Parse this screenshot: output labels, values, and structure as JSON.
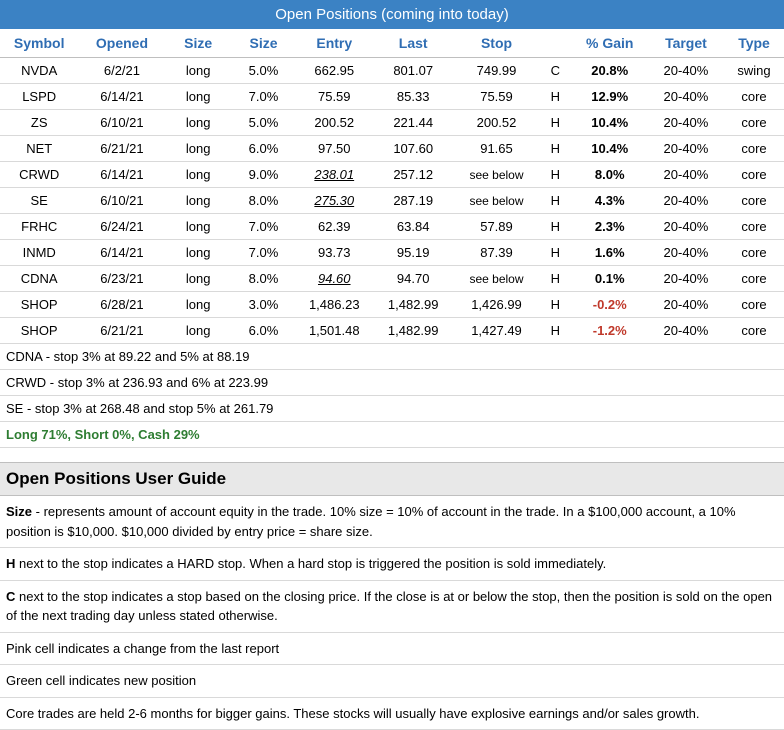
{
  "title": "Open Positions (coming into today)",
  "columns": [
    "Symbol",
    "Opened",
    "Size",
    "Size",
    "Entry",
    "Last",
    "Stop",
    "",
    "% Gain",
    "Target",
    "Type"
  ],
  "rows": [
    {
      "symbol": "NVDA",
      "opened": "6/2/21",
      "side": "long",
      "size": "5.0%",
      "entry": "662.95",
      "entry_u": false,
      "last": "801.07",
      "stop": "749.99",
      "flag": "C",
      "gain": "20.8%",
      "gain_neg": false,
      "target": "20-40%",
      "type": "swing"
    },
    {
      "symbol": "LSPD",
      "opened": "6/14/21",
      "side": "long",
      "size": "7.0%",
      "entry": "75.59",
      "entry_u": false,
      "last": "85.33",
      "stop": "75.59",
      "flag": "H",
      "gain": "12.9%",
      "gain_neg": false,
      "target": "20-40%",
      "type": "core"
    },
    {
      "symbol": "ZS",
      "opened": "6/10/21",
      "side": "long",
      "size": "5.0%",
      "entry": "200.52",
      "entry_u": false,
      "last": "221.44",
      "stop": "200.52",
      "flag": "H",
      "gain": "10.4%",
      "gain_neg": false,
      "target": "20-40%",
      "type": "core"
    },
    {
      "symbol": "NET",
      "opened": "6/21/21",
      "side": "long",
      "size": "6.0%",
      "entry": "97.50",
      "entry_u": false,
      "last": "107.60",
      "stop": "91.65",
      "flag": "H",
      "gain": "10.4%",
      "gain_neg": false,
      "target": "20-40%",
      "type": "core"
    },
    {
      "symbol": "CRWD",
      "opened": "6/14/21",
      "side": "long",
      "size": "9.0%",
      "entry": "238.01",
      "entry_u": true,
      "last": "257.12",
      "stop": "see below",
      "flag": "H",
      "gain": "8.0%",
      "gain_neg": false,
      "target": "20-40%",
      "type": "core"
    },
    {
      "symbol": "SE",
      "opened": "6/10/21",
      "side": "long",
      "size": "8.0%",
      "entry": "275.30",
      "entry_u": true,
      "last": "287.19",
      "stop": "see below",
      "flag": "H",
      "gain": "4.3%",
      "gain_neg": false,
      "target": "20-40%",
      "type": "core"
    },
    {
      "symbol": "FRHC",
      "opened": "6/24/21",
      "side": "long",
      "size": "7.0%",
      "entry": "62.39",
      "entry_u": false,
      "last": "63.84",
      "stop": "57.89",
      "flag": "H",
      "gain": "2.3%",
      "gain_neg": false,
      "target": "20-40%",
      "type": "core"
    },
    {
      "symbol": "INMD",
      "opened": "6/14/21",
      "side": "long",
      "size": "7.0%",
      "entry": "93.73",
      "entry_u": false,
      "last": "95.19",
      "stop": "87.39",
      "flag": "H",
      "gain": "1.6%",
      "gain_neg": false,
      "target": "20-40%",
      "type": "core"
    },
    {
      "symbol": "CDNA",
      "opened": "6/23/21",
      "side": "long",
      "size": "8.0%",
      "entry": "94.60",
      "entry_u": true,
      "last": "94.70",
      "stop": "see below",
      "flag": "H",
      "gain": "0.1%",
      "gain_neg": false,
      "target": "20-40%",
      "type": "core"
    },
    {
      "symbol": "SHOP",
      "opened": "6/28/21",
      "side": "long",
      "size": "3.0%",
      "entry": "1,486.23",
      "entry_u": false,
      "last": "1,482.99",
      "stop": "1,426.99",
      "flag": "H",
      "gain": "-0.2%",
      "gain_neg": true,
      "target": "20-40%",
      "type": "core"
    },
    {
      "symbol": "SHOP",
      "opened": "6/21/21",
      "side": "long",
      "size": "6.0%",
      "entry": "1,501.48",
      "entry_u": false,
      "last": "1,482.99",
      "stop": "1,427.49",
      "flag": "H",
      "gain": "-1.2%",
      "gain_neg": true,
      "target": "20-40%",
      "type": "core"
    }
  ],
  "notes": [
    "CDNA - stop 3% at 89.22 and 5% at 88.19",
    "CRWD  - stop 3% at 236.93 and 6% at 223.99",
    "SE - stop 3% at 268.48 and stop 5% at 261.79"
  ],
  "allocation": "Long 71%, Short 0%, Cash 29%",
  "guide": {
    "title": "Open Positions User Guide",
    "size_label": "Size",
    "size_text": " - represents amount of account equity in the trade.  10% size = 10% of account in the trade.  In a $100,000 account, a 10% position is $10,000.  $10,000 divided by entry price = share size.",
    "h_label": "H",
    "h_text": " next to the stop indicates a HARD stop.  When a hard stop is triggered the position is sold immediately.",
    "c_label": "C",
    "c_text": " next to the stop indicates a stop based on the closing price.  If the close is at or below the stop, then the position is sold on the open of the next trading day unless stated otherwise.",
    "pink": "Pink cell indicates a change from the last report",
    "green": "Green cell indicates new position",
    "core": "Core trades are held 2-6 months for bigger gains.  These stocks will usually have explosive earnings and/or sales growth."
  },
  "style": {
    "header_bg": "#3b82c4",
    "header_text_color": "#2f6db3",
    "neg_color": "#c0392b",
    "alloc_color": "#2e7d32",
    "guide_bg": "#e8e8e8",
    "border_color": "#d9d9d9"
  }
}
